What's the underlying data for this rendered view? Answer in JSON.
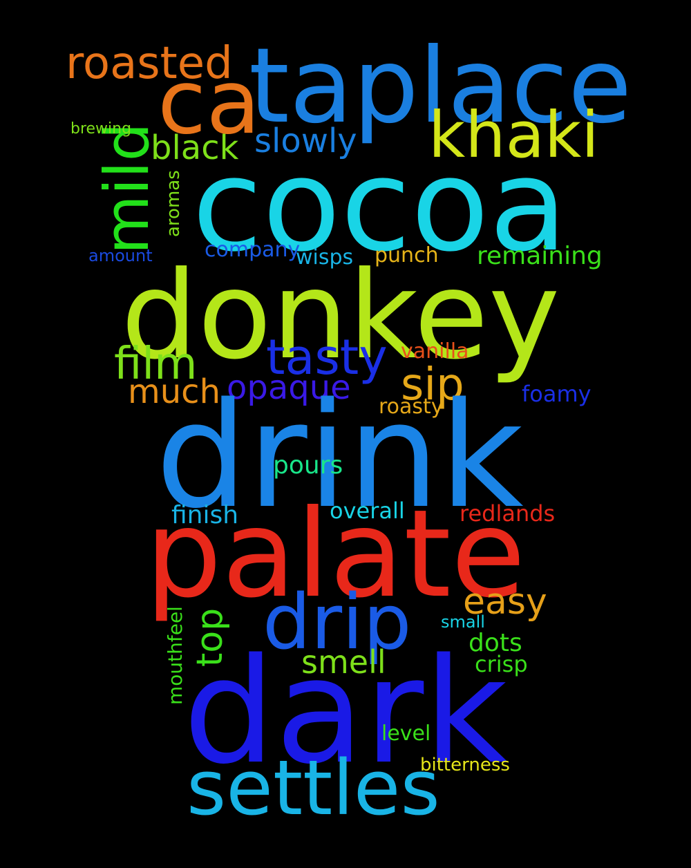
{
  "words": [
    {
      "text": "taplace",
      "color": "#1a7fe0"
    },
    {
      "text": "roasted",
      "color": "#e8741a"
    },
    {
      "text": "ca",
      "color": "#e8741a"
    },
    {
      "text": "khaki",
      "color": "#d4e619"
    },
    {
      "text": "mild",
      "color": "#22e01a"
    },
    {
      "text": "brewing",
      "color": "#7ee01a"
    },
    {
      "text": "black",
      "color": "#7ee01a"
    },
    {
      "text": "slowly",
      "color": "#1a7fe0"
    },
    {
      "text": "cocoa",
      "color": "#19d4e6"
    },
    {
      "text": "aromas",
      "color": "#7ee01a"
    },
    {
      "text": "amount",
      "color": "#1a4ae0"
    },
    {
      "text": "company",
      "color": "#1a5be6"
    },
    {
      "text": "wisps",
      "color": "#19b4e6"
    },
    {
      "text": "punch",
      "color": "#e6b419"
    },
    {
      "text": "remaining",
      "color": "#3ae01a"
    },
    {
      "text": "donkey",
      "color": "#b4e619"
    },
    {
      "text": "film",
      "color": "#7ee01a"
    },
    {
      "text": "tasty",
      "color": "#1a2fe6"
    },
    {
      "text": "vanilla",
      "color": "#e8501a"
    },
    {
      "text": "sip",
      "color": "#e6a819"
    },
    {
      "text": "much",
      "color": "#e8901a"
    },
    {
      "text": "opaque",
      "color": "#3a1ae6"
    },
    {
      "text": "foamy",
      "color": "#1a2fe6"
    },
    {
      "text": "roasty",
      "color": "#e6a819"
    },
    {
      "text": "drink",
      "color": "#1a84e6"
    },
    {
      "text": "pours",
      "color": "#19e68a"
    },
    {
      "text": "finish",
      "color": "#19b4e6"
    },
    {
      "text": "overall",
      "color": "#19d4e6"
    },
    {
      "text": "redlands",
      "color": "#e8281a"
    },
    {
      "text": "palate",
      "color": "#e8281a"
    },
    {
      "text": "easy",
      "color": "#e6a019"
    },
    {
      "text": "mouthfeel",
      "color": "#3ae01a"
    },
    {
      "text": "top",
      "color": "#3ae01a"
    },
    {
      "text": "drip",
      "color": "#1a5be6"
    },
    {
      "text": "small",
      "color": "#19d4e6"
    },
    {
      "text": "dots",
      "color": "#3ae01a"
    },
    {
      "text": "smell",
      "color": "#7ee01a"
    },
    {
      "text": "crisp",
      "color": "#3ae01a"
    },
    {
      "text": "dark",
      "color": "#1a1ae6"
    },
    {
      "text": "level",
      "color": "#3ae01a"
    },
    {
      "text": "bitterness",
      "color": "#e6e619"
    },
    {
      "text": "settles",
      "color": "#19b4e6"
    }
  ]
}
